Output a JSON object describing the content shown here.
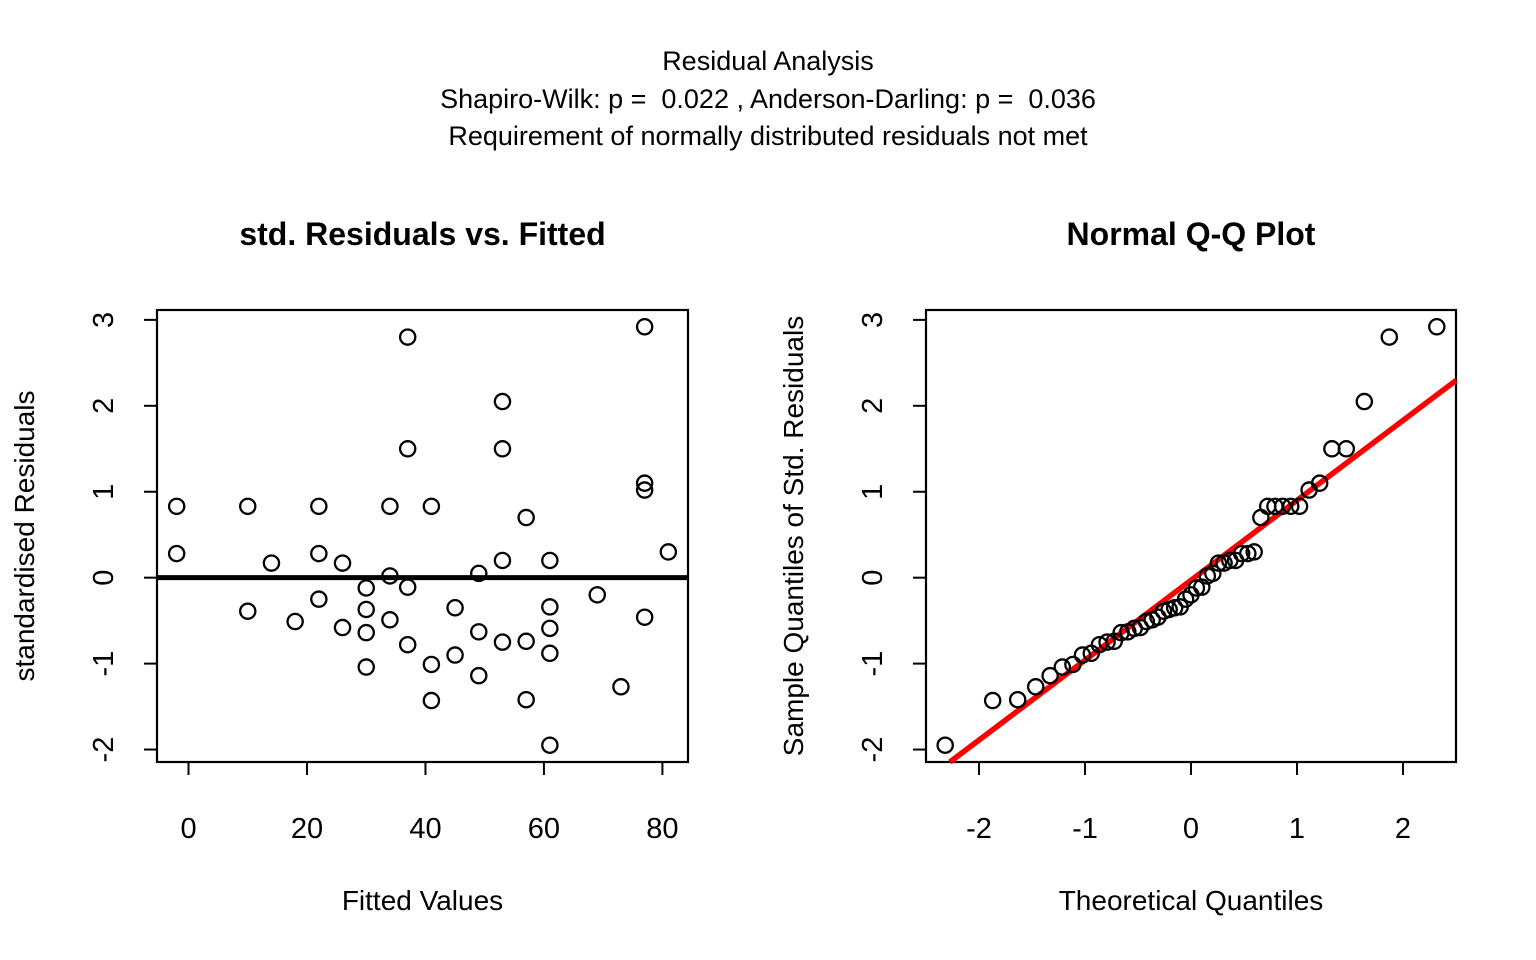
{
  "header": {
    "line1": "Residual Analysis",
    "line2": "Shapiro-Wilk: p =  0.022 , Anderson-Darling: p =  0.036",
    "line3": "Requirement of normally distributed residuals not met"
  },
  "colors": {
    "background": "#ffffff",
    "foreground": "#000000",
    "qq_line": "#ff0000"
  },
  "chart_data": [
    {
      "type": "scatter",
      "title": "std. Residuals vs. Fitted",
      "xlabel": "Fitted Values",
      "ylabel": "standardised Residuals",
      "xlim": [
        -5.32,
        84.32
      ],
      "ylim": [
        -2.145,
        3.115
      ],
      "xticks": [
        0,
        20,
        40,
        60,
        80
      ],
      "yticks": [
        -2,
        -1,
        0,
        1,
        2,
        3
      ],
      "hline": 0,
      "marker": "open-circle",
      "points": [
        [
          -2,
          0.83
        ],
        [
          -2,
          0.28
        ],
        [
          10,
          0.83
        ],
        [
          10,
          -0.39
        ],
        [
          14,
          0.17
        ],
        [
          18,
          -0.51
        ],
        [
          22,
          0.83
        ],
        [
          22,
          0.28
        ],
        [
          22,
          -0.25
        ],
        [
          26,
          0.17
        ],
        [
          26,
          -0.58
        ],
        [
          30,
          -0.12
        ],
        [
          30,
          -0.37
        ],
        [
          30,
          -0.64
        ],
        [
          30,
          -1.04
        ],
        [
          34,
          0.83
        ],
        [
          34,
          0.02
        ],
        [
          34,
          -0.49
        ],
        [
          37,
          2.8
        ],
        [
          37,
          1.5
        ],
        [
          37,
          -0.11
        ],
        [
          37,
          -0.78
        ],
        [
          41,
          0.83
        ],
        [
          41,
          -1.01
        ],
        [
          41,
          -1.43
        ],
        [
          45,
          -0.35
        ],
        [
          45,
          -0.9
        ],
        [
          49,
          0.05
        ],
        [
          49,
          -0.63
        ],
        [
          49,
          -1.14
        ],
        [
          53,
          2.05
        ],
        [
          53,
          1.5
        ],
        [
          53,
          0.2
        ],
        [
          53,
          -0.75
        ],
        [
          57,
          0.7
        ],
        [
          57,
          -0.74
        ],
        [
          57,
          -1.42
        ],
        [
          61,
          0.2
        ],
        [
          61,
          -0.34
        ],
        [
          61,
          -0.59
        ],
        [
          61,
          -0.88
        ],
        [
          61,
          -1.95
        ],
        [
          69,
          -0.2
        ],
        [
          73,
          -1.27
        ],
        [
          77,
          2.92
        ],
        [
          77,
          1.1
        ],
        [
          77,
          1.02
        ],
        [
          77,
          -0.46
        ],
        [
          81,
          0.3
        ]
      ]
    },
    {
      "type": "scatter",
      "title": "Normal Q-Q Plot",
      "xlabel": "Theoretical Quantiles",
      "ylabel": "Sample Quantiles of Std. Residuals",
      "xlim": [
        -2.5,
        2.5
      ],
      "ylim": [
        -2.145,
        3.115
      ],
      "xticks": [
        -2,
        -1,
        0,
        1,
        2
      ],
      "yticks": [
        -2,
        -1,
        0,
        1,
        2,
        3
      ],
      "ref_line": {
        "slope": 0.93,
        "intercept": -0.03,
        "color": "#ff0000"
      },
      "marker": "open-circle",
      "points": [
        [
          -2.319,
          -1.95
        ],
        [
          -1.871,
          -1.43
        ],
        [
          -1.635,
          -1.42
        ],
        [
          -1.465,
          -1.27
        ],
        [
          -1.329,
          -1.14
        ],
        [
          -1.214,
          -1.04
        ],
        [
          -1.114,
          -1.01
        ],
        [
          -1.024,
          -0.9
        ],
        [
          -0.941,
          -0.88
        ],
        [
          -0.864,
          -0.78
        ],
        [
          -0.792,
          -0.75
        ],
        [
          -0.724,
          -0.74
        ],
        [
          -0.659,
          -0.64
        ],
        [
          -0.596,
          -0.63
        ],
        [
          -0.536,
          -0.59
        ],
        [
          -0.478,
          -0.58
        ],
        [
          -0.421,
          -0.51
        ],
        [
          -0.366,
          -0.49
        ],
        [
          -0.312,
          -0.46
        ],
        [
          -0.259,
          -0.39
        ],
        [
          -0.206,
          -0.37
        ],
        [
          -0.154,
          -0.35
        ],
        [
          -0.102,
          -0.34
        ],
        [
          -0.051,
          -0.25
        ],
        [
          0.0,
          -0.2
        ],
        [
          0.051,
          -0.12
        ],
        [
          0.102,
          -0.11
        ],
        [
          0.154,
          0.02
        ],
        [
          0.206,
          0.05
        ],
        [
          0.259,
          0.17
        ],
        [
          0.312,
          0.17
        ],
        [
          0.366,
          0.2
        ],
        [
          0.421,
          0.2
        ],
        [
          0.478,
          0.28
        ],
        [
          0.536,
          0.28
        ],
        [
          0.596,
          0.3
        ],
        [
          0.659,
          0.7
        ],
        [
          0.724,
          0.83
        ],
        [
          0.792,
          0.83
        ],
        [
          0.864,
          0.83
        ],
        [
          0.941,
          0.83
        ],
        [
          1.024,
          0.83
        ],
        [
          1.114,
          1.02
        ],
        [
          1.214,
          1.1
        ],
        [
          1.329,
          1.5
        ],
        [
          1.465,
          1.5
        ],
        [
          1.635,
          2.05
        ],
        [
          1.871,
          2.8
        ],
        [
          2.319,
          2.92
        ]
      ]
    }
  ]
}
